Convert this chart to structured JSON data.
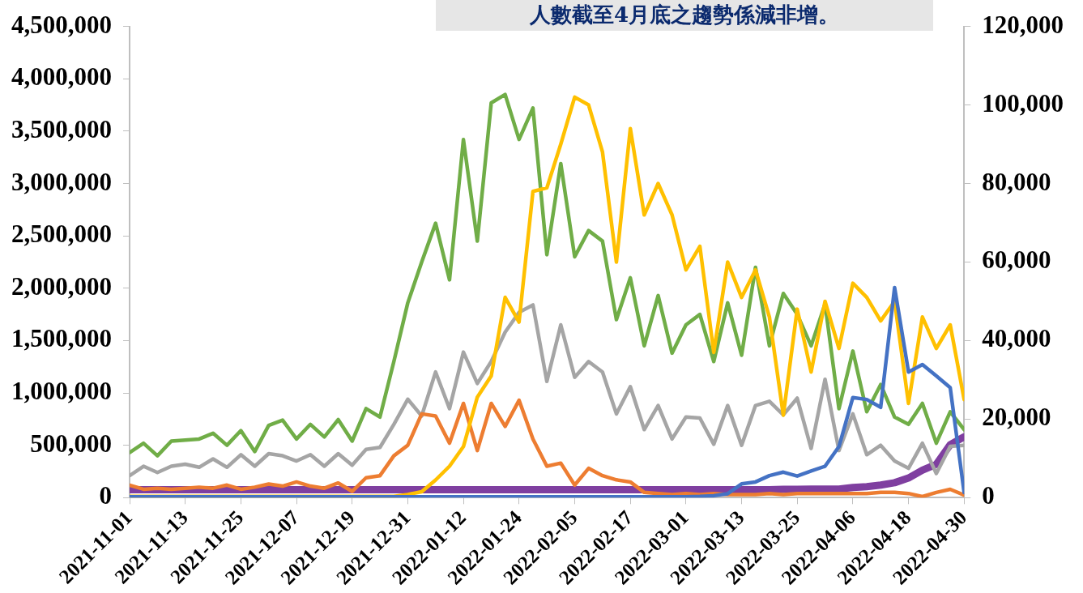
{
  "chart_data": {
    "type": "line",
    "title": "人數截至4月底之趨勢係減非增。",
    "x": [
      "2021-11-01",
      "2021-11-04",
      "2021-11-07",
      "2021-11-10",
      "2021-11-13",
      "2021-11-16",
      "2021-11-19",
      "2021-11-22",
      "2021-11-25",
      "2021-11-28",
      "2021-12-01",
      "2021-12-04",
      "2021-12-07",
      "2021-12-10",
      "2021-12-13",
      "2021-12-16",
      "2021-12-19",
      "2021-12-22",
      "2021-12-25",
      "2021-12-28",
      "2021-12-31",
      "2022-01-03",
      "2022-01-06",
      "2022-01-09",
      "2022-01-12",
      "2022-01-15",
      "2022-01-18",
      "2022-01-21",
      "2022-01-24",
      "2022-01-27",
      "2022-01-30",
      "2022-02-02",
      "2022-02-05",
      "2022-02-08",
      "2022-02-11",
      "2022-02-14",
      "2022-02-17",
      "2022-02-20",
      "2022-02-23",
      "2022-02-26",
      "2022-03-01",
      "2022-03-04",
      "2022-03-07",
      "2022-03-10",
      "2022-03-13",
      "2022-03-16",
      "2022-03-19",
      "2022-03-22",
      "2022-03-25",
      "2022-03-28",
      "2022-03-31",
      "2022-04-03",
      "2022-04-06",
      "2022-04-09",
      "2022-04-12",
      "2022-04-15",
      "2022-04-18",
      "2022-04-21",
      "2022-04-24",
      "2022-04-27",
      "2022-04-30"
    ],
    "xticks": [
      "2021-11-01",
      "2021-11-13",
      "2021-11-25",
      "2021-12-07",
      "2021-12-19",
      "2021-12-31",
      "2022-01-12",
      "2022-01-24",
      "2022-02-05",
      "2022-02-17",
      "2022-03-01",
      "2022-03-13",
      "2022-03-25",
      "2022-04-06",
      "2022-04-18",
      "2022-04-30"
    ],
    "xlim": [
      "2021-11-01",
      "2022-04-30"
    ],
    "ylim": [
      0,
      4500000
    ],
    "yticks": [
      {
        "value": 0,
        "label": "0"
      },
      {
        "value": 500000,
        "label": "500,000"
      },
      {
        "value": 1000000,
        "label": "1,000,000"
      },
      {
        "value": 1500000,
        "label": "1,500,000"
      },
      {
        "value": 2000000,
        "label": "2,000,000"
      },
      {
        "value": 2500000,
        "label": "2,500,000"
      },
      {
        "value": 3000000,
        "label": "3,000,000"
      },
      {
        "value": 3500000,
        "label": "3,500,000"
      },
      {
        "value": 4000000,
        "label": "4,000,000"
      },
      {
        "value": 4500000,
        "label": "4,500,000"
      }
    ],
    "y2lim": [
      0,
      120000
    ],
    "y2ticks": [
      {
        "value": 0,
        "label": "0"
      },
      {
        "value": 20000,
        "label": "20,000"
      },
      {
        "value": 40000,
        "label": "40,000"
      },
      {
        "value": 60000,
        "label": "60,000"
      },
      {
        "value": 80000,
        "label": "80,000"
      },
      {
        "value": 100000,
        "label": "100,000"
      },
      {
        "value": 120000,
        "label": "120,000"
      }
    ],
    "grid": false,
    "series": [
      {
        "color": "#7f3fa0",
        "axis": "y2",
        "values": [
          2000,
          2000,
          2000,
          2000,
          2000,
          2000,
          2000,
          2000,
          2000,
          2000,
          2000,
          2000,
          2000,
          2000,
          2000,
          2000,
          2000,
          2000,
          2000,
          2000,
          2000,
          2000,
          2000,
          2000,
          2000,
          2000,
          2000,
          2000,
          2000,
          2000,
          2000,
          2000,
          2000,
          2000,
          2000,
          2000,
          2000,
          2000,
          2000,
          2000,
          2000,
          2000,
          2000,
          2000,
          2000,
          2000,
          2000,
          2100,
          2100,
          2200,
          2200,
          2200,
          2600,
          2800,
          3200,
          3800,
          5000,
          7000,
          8500,
          13500,
          15500
        ]
      },
      {
        "color": "#70ad47",
        "values": [
          430000,
          520000,
          400000,
          540000,
          550000,
          560000,
          615000,
          500000,
          640000,
          440000,
          690000,
          740000,
          560000,
          700000,
          580000,
          745000,
          540000,
          850000,
          770000,
          1300000,
          1860000,
          2250000,
          2620000,
          2080000,
          3420000,
          2450000,
          3770000,
          3850000,
          3420000,
          3720000,
          2320000,
          3190000,
          2300000,
          2550000,
          2450000,
          1700000,
          2100000,
          1450000,
          1930000,
          1380000,
          1650000,
          1750000,
          1300000,
          1860000,
          1360000,
          2200000,
          1450000,
          1950000,
          1750000,
          1450000,
          1850000,
          850000,
          1400000,
          820000,
          1080000,
          770000,
          700000,
          900000,
          520000,
          820000,
          650000
        ]
      },
      {
        "color": "#a5a5a5",
        "values": [
          210000,
          300000,
          240000,
          300000,
          320000,
          290000,
          370000,
          290000,
          410000,
          300000,
          420000,
          400000,
          350000,
          410000,
          300000,
          420000,
          310000,
          460000,
          480000,
          700000,
          940000,
          780000,
          1200000,
          850000,
          1390000,
          1090000,
          1300000,
          1580000,
          1770000,
          1840000,
          1110000,
          1650000,
          1150000,
          1300000,
          1200000,
          800000,
          1060000,
          650000,
          880000,
          560000,
          770000,
          760000,
          510000,
          880000,
          500000,
          880000,
          920000,
          790000,
          950000,
          470000,
          1130000,
          450000,
          800000,
          410000,
          500000,
          350000,
          280000,
          520000,
          230000,
          490000,
          500000
        ]
      },
      {
        "color": "#ed7d31",
        "values": [
          120000,
          80000,
          90000,
          80000,
          90000,
          100000,
          90000,
          120000,
          80000,
          100000,
          130000,
          110000,
          150000,
          110000,
          90000,
          140000,
          60000,
          190000,
          210000,
          400000,
          500000,
          800000,
          780000,
          520000,
          900000,
          450000,
          900000,
          680000,
          930000,
          560000,
          300000,
          330000,
          120000,
          280000,
          210000,
          170000,
          150000,
          50000,
          40000,
          30000,
          40000,
          30000,
          40000,
          30000,
          30000,
          30000,
          40000,
          30000,
          40000,
          40000,
          40000,
          40000,
          40000,
          40000,
          50000,
          50000,
          40000,
          10000,
          50000,
          80000,
          25000
        ]
      },
      {
        "color": "#ffc000",
        "axis": "y2",
        "values": [
          300,
          300,
          300,
          300,
          300,
          300,
          300,
          300,
          300,
          300,
          300,
          300,
          300,
          300,
          300,
          300,
          300,
          300,
          300,
          300,
          800,
          1500,
          4500,
          8000,
          13000,
          25600,
          31000,
          51000,
          44700,
          78000,
          78900,
          90000,
          102000,
          100000,
          88000,
          60000,
          94000,
          72000,
          80000,
          72000,
          58000,
          64000,
          37000,
          60000,
          51000,
          58000,
          46000,
          21000,
          48000,
          32000,
          50000,
          38000,
          54600,
          51000,
          45000,
          50000,
          24000,
          46000,
          38000,
          44000,
          25000
        ]
      },
      {
        "color": "#4472c4",
        "axis": "y2",
        "values": [
          200,
          200,
          200,
          200,
          200,
          200,
          200,
          200,
          200,
          200,
          200,
          200,
          200,
          200,
          200,
          200,
          200,
          200,
          200,
          200,
          200,
          200,
          200,
          200,
          200,
          200,
          200,
          200,
          200,
          200,
          200,
          200,
          200,
          200,
          200,
          200,
          200,
          200,
          200,
          200,
          200,
          300,
          500,
          1000,
          3500,
          4000,
          5600,
          6500,
          5500,
          6800,
          8000,
          13000,
          25500,
          25000,
          23000,
          53500,
          32000,
          33900,
          31000,
          28000,
          1300
        ]
      }
    ]
  }
}
